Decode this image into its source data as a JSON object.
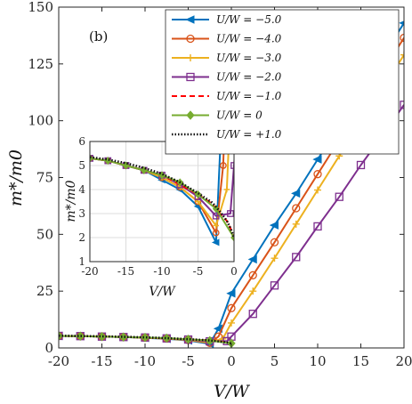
{
  "chart_data": {
    "type": "line",
    "panel_label": "(b)",
    "xlabel": "V/W",
    "ylabel": "m*/m0",
    "xlim": [
      -20,
      20
    ],
    "ylim": [
      0,
      150
    ],
    "xticks": [
      -20,
      -15,
      -10,
      -5,
      0,
      5,
      10,
      15,
      20
    ],
    "yticks": [
      0,
      25,
      50,
      75,
      100,
      125,
      150
    ],
    "grid": false,
    "legend_position": "top-right",
    "series": [
      {
        "name": "U/W = −5.0",
        "color": "#0072bd",
        "marker": "triangle-left",
        "line": "solid",
        "x": [
          -20,
          -17.5,
          -15,
          -12.5,
          -10,
          -7.5,
          -5,
          -2.5,
          -1.5,
          0,
          2.5,
          5,
          7.5,
          10,
          12.5,
          15,
          17.5,
          20
        ],
        "y": [
          5.3,
          5.2,
          5.0,
          4.8,
          4.4,
          4.0,
          3.3,
          1.8,
          8.5,
          24,
          39,
          54,
          68,
          83,
          98,
          113,
          128,
          143
        ]
      },
      {
        "name": "U/W = −4.0",
        "color": "#d95319",
        "marker": "circle",
        "line": "solid",
        "x": [
          -20,
          -17.5,
          -15,
          -12.5,
          -10,
          -7.5,
          -5,
          -2.5,
          -1.5,
          0,
          2.5,
          5,
          7.5,
          10,
          12.5,
          15,
          17.5,
          20
        ],
        "y": [
          5.3,
          5.2,
          5.0,
          4.8,
          4.5,
          4.1,
          3.5,
          2.2,
          5,
          17.5,
          32,
          46.5,
          61.5,
          76.5,
          91.5,
          106.5,
          121.5,
          136.5
        ]
      },
      {
        "name": "U/W = −3.0",
        "color": "#edb120",
        "marker": "plus",
        "line": "solid",
        "x": [
          -20,
          -17.5,
          -15,
          -12.5,
          -10,
          -7.5,
          -5,
          -2.5,
          -1,
          0,
          2.5,
          5,
          7.5,
          10,
          12.5,
          15,
          17.5,
          20
        ],
        "y": [
          5.3,
          5.2,
          5.0,
          4.8,
          4.5,
          4.1,
          3.5,
          2.5,
          4,
          11,
          25,
          39.5,
          54.5,
          69.5,
          84.5,
          99.5,
          114,
          129
        ]
      },
      {
        "name": "U/W = −2.0",
        "color": "#7e2f8e",
        "marker": "square",
        "line": "solid",
        "x": [
          -20,
          -17.5,
          -15,
          -12.5,
          -10,
          -7.5,
          -5,
          -2.5,
          -0.5,
          0,
          2.5,
          5,
          7.5,
          10,
          12.5,
          15,
          17.5,
          20
        ],
        "y": [
          5.3,
          5.2,
          5.0,
          4.8,
          4.6,
          4.2,
          3.7,
          2.9,
          3,
          5,
          15,
          27.5,
          40,
          53.5,
          66.5,
          80.5,
          93.5,
          107
        ]
      },
      {
        "name": "U/W = −1.0",
        "color": "#ff0000",
        "marker": "none",
        "line": "dashed",
        "x": [
          -20,
          -17.5,
          -15,
          -12.5,
          -10,
          -7.5,
          -5,
          -3,
          -2,
          -1,
          -0.5,
          0
        ],
        "y": [
          5.3,
          5.2,
          5.0,
          4.8,
          4.6,
          4.2,
          3.8,
          3.4,
          3.0,
          2.7,
          2.4,
          2.0
        ]
      },
      {
        "name": "U/W = 0",
        "color": "#77ac30",
        "marker": "diamond",
        "line": "solid",
        "x": [
          -20,
          -17.5,
          -15,
          -12.5,
          -10,
          -7.5,
          -5,
          -2.5,
          0
        ],
        "y": [
          5.3,
          5.2,
          5.0,
          4.8,
          4.6,
          4.3,
          3.8,
          3.2,
          2.0
        ]
      },
      {
        "name": "U/W = +1.0",
        "color": "#111111",
        "marker": "none",
        "line": "dotted",
        "x": [
          -20,
          -17.5,
          -15,
          -12.5,
          -10,
          -7.5,
          -5,
          -3,
          -2,
          -1,
          -0.5,
          0
        ],
        "y": [
          5.35,
          5.25,
          5.1,
          4.9,
          4.65,
          4.3,
          3.85,
          3.45,
          3.1,
          2.7,
          2.4,
          2.0
        ]
      }
    ],
    "inset": {
      "xlabel": "V/W",
      "ylabel": "m*/m0",
      "xlim": [
        -20,
        0
      ],
      "ylim": [
        1,
        6
      ],
      "xticks": [
        -20,
        -15,
        -10,
        -5,
        0
      ],
      "yticks": [
        1,
        2,
        3,
        4,
        5,
        6
      ],
      "grid": true
    }
  }
}
